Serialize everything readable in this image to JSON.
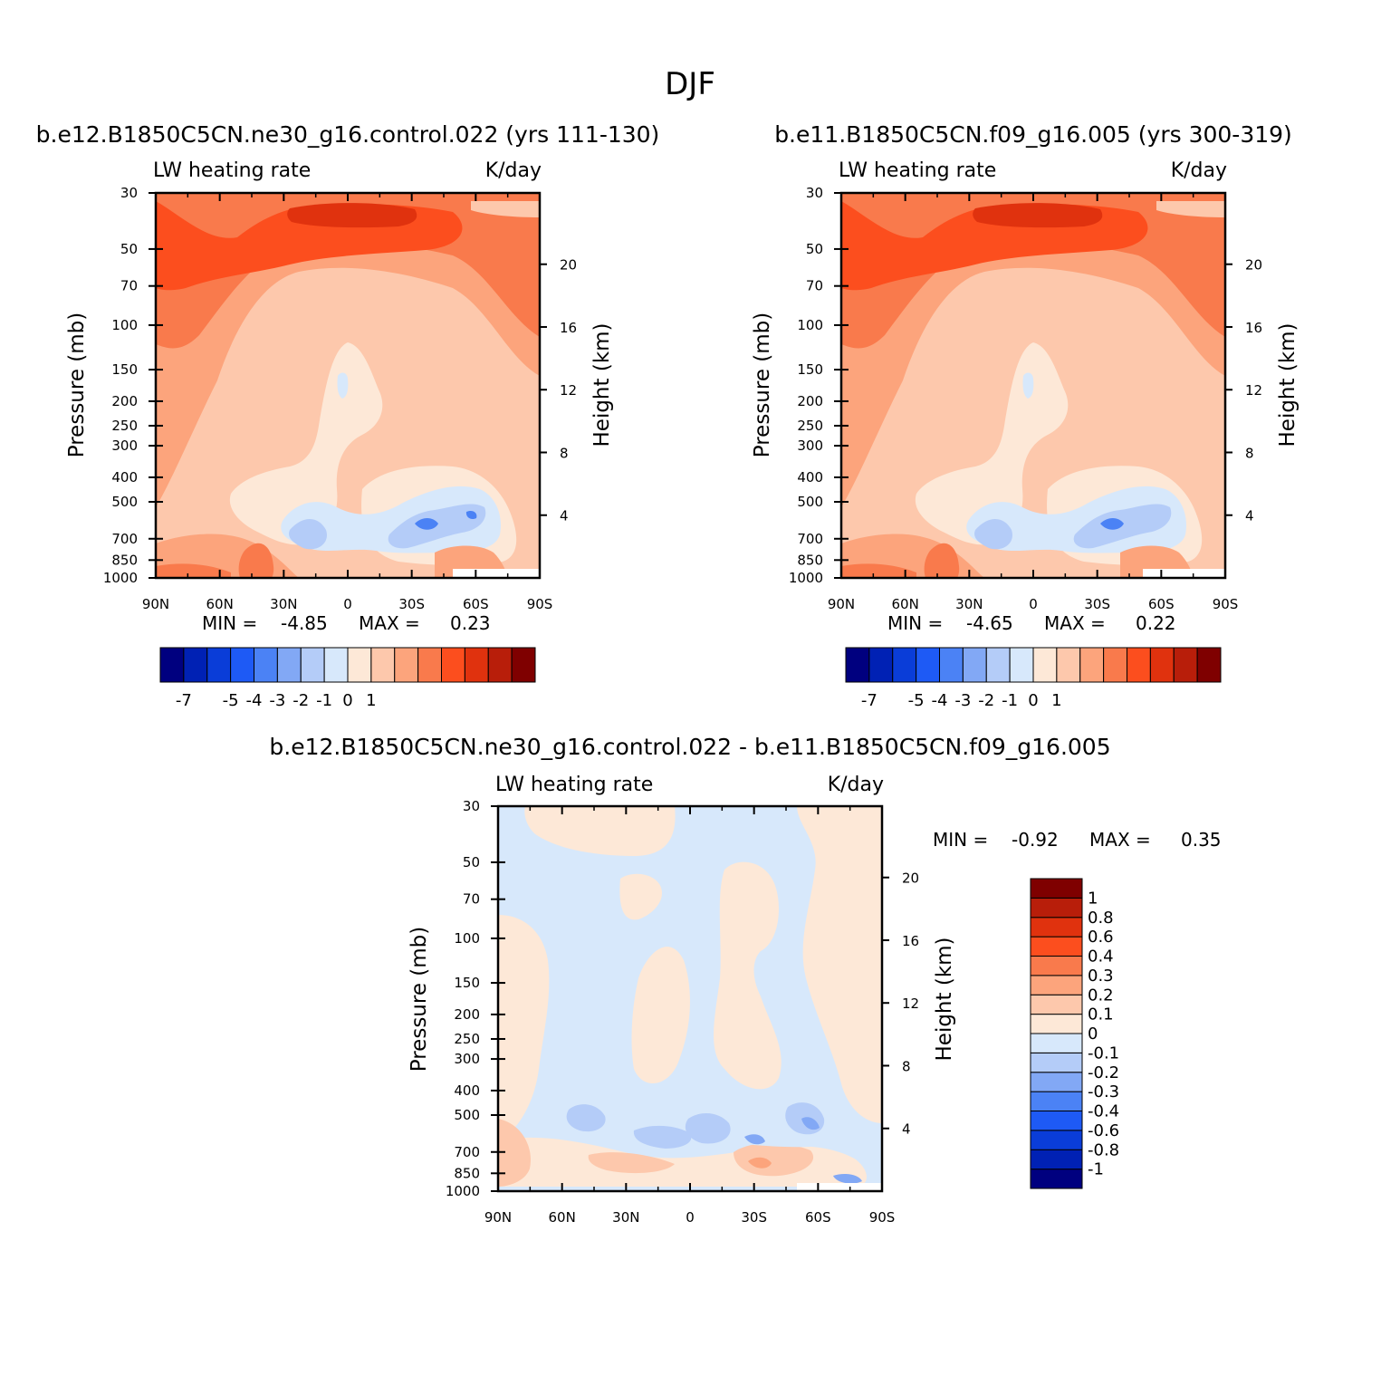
{
  "page_title": "DJF",
  "chart_data": [
    {
      "type": "heatmap",
      "title": "b.e12.B1850C5CN.ne30_g16.control.022 (yrs 111-130)",
      "left_label": "LW heating rate",
      "right_label": "K/day",
      "xlabel": "",
      "ylabel": "Pressure (mb)",
      "y2label": "Height (km)",
      "x_ticks": [
        "90N",
        "60N",
        "30N",
        "0",
        "30S",
        "60S",
        "90S"
      ],
      "xlim": [
        90,
        -90
      ],
      "y_ticks": [
        30,
        50,
        70,
        100,
        150,
        200,
        250,
        300,
        400,
        500,
        700,
        850,
        1000
      ],
      "ylim": [
        1000,
        30
      ],
      "y2_ticks": [
        20,
        16,
        12,
        8,
        4
      ],
      "stats": {
        "min_label": "MIN =",
        "min": "-4.85",
        "max_label": "MAX =",
        "max": "0.23"
      },
      "colorbar": {
        "orientation": "horizontal",
        "colors": [
          "#00007f",
          "#0021b4",
          "#0a3dd8",
          "#1e5af5",
          "#4b82f5",
          "#82a8f5",
          "#b4ccf8",
          "#d7e8fb",
          "#fde8d7",
          "#fdc8ac",
          "#fca47c",
          "#f97a4c",
          "#fc4e1e",
          "#e0320e",
          "#b81e0a",
          "#7f0000"
        ],
        "tick_labels": [
          "-7",
          "-5",
          "-4",
          "-3",
          "-2",
          "-1",
          "0",
          "1"
        ]
      }
    },
    {
      "type": "heatmap",
      "title": "b.e11.B1850C5CN.f09_g16.005 (yrs 300-319)",
      "left_label": "LW heating rate",
      "right_label": "K/day",
      "xlabel": "",
      "ylabel": "Pressure (mb)",
      "y2label": "Height (km)",
      "x_ticks": [
        "90N",
        "60N",
        "30N",
        "0",
        "30S",
        "60S",
        "90S"
      ],
      "xlim": [
        90,
        -90
      ],
      "y_ticks": [
        30,
        50,
        70,
        100,
        150,
        200,
        250,
        300,
        400,
        500,
        700,
        850,
        1000
      ],
      "ylim": [
        1000,
        30
      ],
      "y2_ticks": [
        20,
        16,
        12,
        8,
        4
      ],
      "stats": {
        "min_label": "MIN =",
        "min": "-4.65",
        "max_label": "MAX =",
        "max": "0.22"
      },
      "colorbar": {
        "orientation": "horizontal",
        "colors": [
          "#00007f",
          "#0021b4",
          "#0a3dd8",
          "#1e5af5",
          "#4b82f5",
          "#82a8f5",
          "#b4ccf8",
          "#d7e8fb",
          "#fde8d7",
          "#fdc8ac",
          "#fca47c",
          "#f97a4c",
          "#fc4e1e",
          "#e0320e",
          "#b81e0a",
          "#7f0000"
        ],
        "tick_labels": [
          "-7",
          "-5",
          "-4",
          "-3",
          "-2",
          "-1",
          "0",
          "1"
        ]
      }
    },
    {
      "type": "heatmap",
      "title": "b.e12.B1850C5CN.ne30_g16.control.022 - b.e11.B1850C5CN.f09_g16.005",
      "left_label": "LW heating rate",
      "right_label": "K/day",
      "xlabel": "",
      "ylabel": "Pressure (mb)",
      "y2label": "Height (km)",
      "x_ticks": [
        "90N",
        "60N",
        "30N",
        "0",
        "30S",
        "60S",
        "90S"
      ],
      "xlim": [
        90,
        -90
      ],
      "y_ticks": [
        30,
        50,
        70,
        100,
        150,
        200,
        250,
        300,
        400,
        500,
        700,
        850,
        1000
      ],
      "ylim": [
        1000,
        30
      ],
      "y2_ticks": [
        20,
        16,
        12,
        8,
        4
      ],
      "stats": {
        "min_label": "MIN =",
        "min": "-0.92",
        "max_label": "MAX =",
        "max": "0.35"
      },
      "colorbar": {
        "orientation": "vertical",
        "colors": [
          "#00007f",
          "#0021b4",
          "#0a3dd8",
          "#1e5af5",
          "#4b82f5",
          "#82a8f5",
          "#b4ccf8",
          "#d7e8fb",
          "#fde8d7",
          "#fdc8ac",
          "#fca47c",
          "#f97a4c",
          "#fc4e1e",
          "#e0320e",
          "#b81e0a",
          "#7f0000"
        ],
        "tick_labels": [
          "1",
          "0.8",
          "0.6",
          "0.4",
          "0.3",
          "0.2",
          "0.1",
          "0",
          "-0.1",
          "-0.2",
          "-0.3",
          "-0.4",
          "-0.6",
          "-0.8",
          "-1"
        ]
      }
    }
  ]
}
